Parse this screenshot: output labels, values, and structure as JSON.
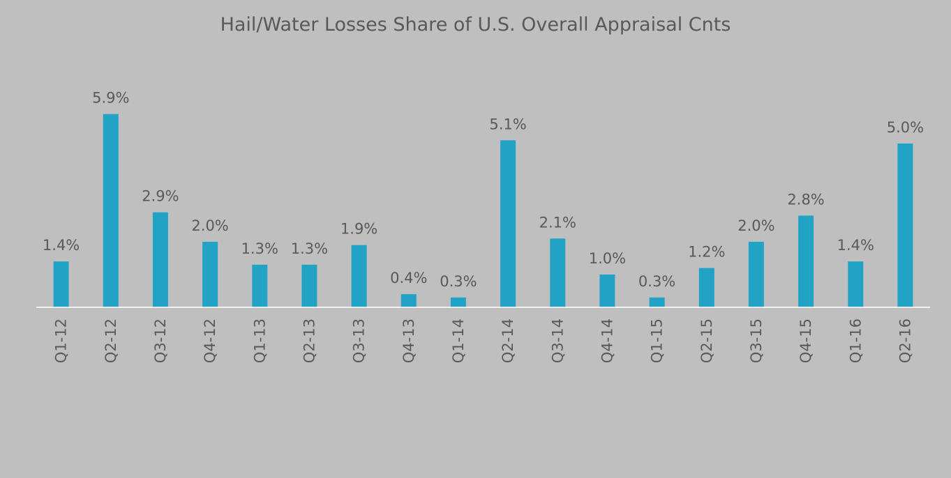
{
  "chart_data": {
    "type": "bar",
    "title": "Hail/Water Losses Share of U.S. Overall Appraisal Cnts",
    "xlabel": "",
    "ylabel": "",
    "categories": [
      "Q1-12",
      "Q2-12",
      "Q3-12",
      "Q4-12",
      "Q1-13",
      "Q2-13",
      "Q3-13",
      "Q4-13",
      "Q1-14",
      "Q2-14",
      "Q3-14",
      "Q4-14",
      "Q1-15",
      "Q2-15",
      "Q3-15",
      "Q4-15",
      "Q1-16",
      "Q2-16"
    ],
    "values": [
      1.4,
      5.9,
      2.9,
      2.0,
      1.3,
      1.3,
      1.9,
      0.4,
      0.3,
      5.1,
      2.1,
      1.0,
      0.3,
      1.2,
      2.0,
      2.8,
      1.4,
      5.0
    ],
    "labels": [
      "1.4%",
      "5.9%",
      "2.9%",
      "2.0%",
      "1.3%",
      "1.3%",
      "1.9%",
      "0.4%",
      "0.3%",
      "5.1%",
      "2.1%",
      "1.0%",
      "0.3%",
      "1.2%",
      "2.0%",
      "2.8%",
      "1.4%",
      "5.0%"
    ],
    "ylim": [
      0,
      6.5
    ],
    "grid": false,
    "legend": "none",
    "bar_color": "#22a3c6",
    "axis_color": "#ffffff",
    "background": "#bfbfbf"
  }
}
